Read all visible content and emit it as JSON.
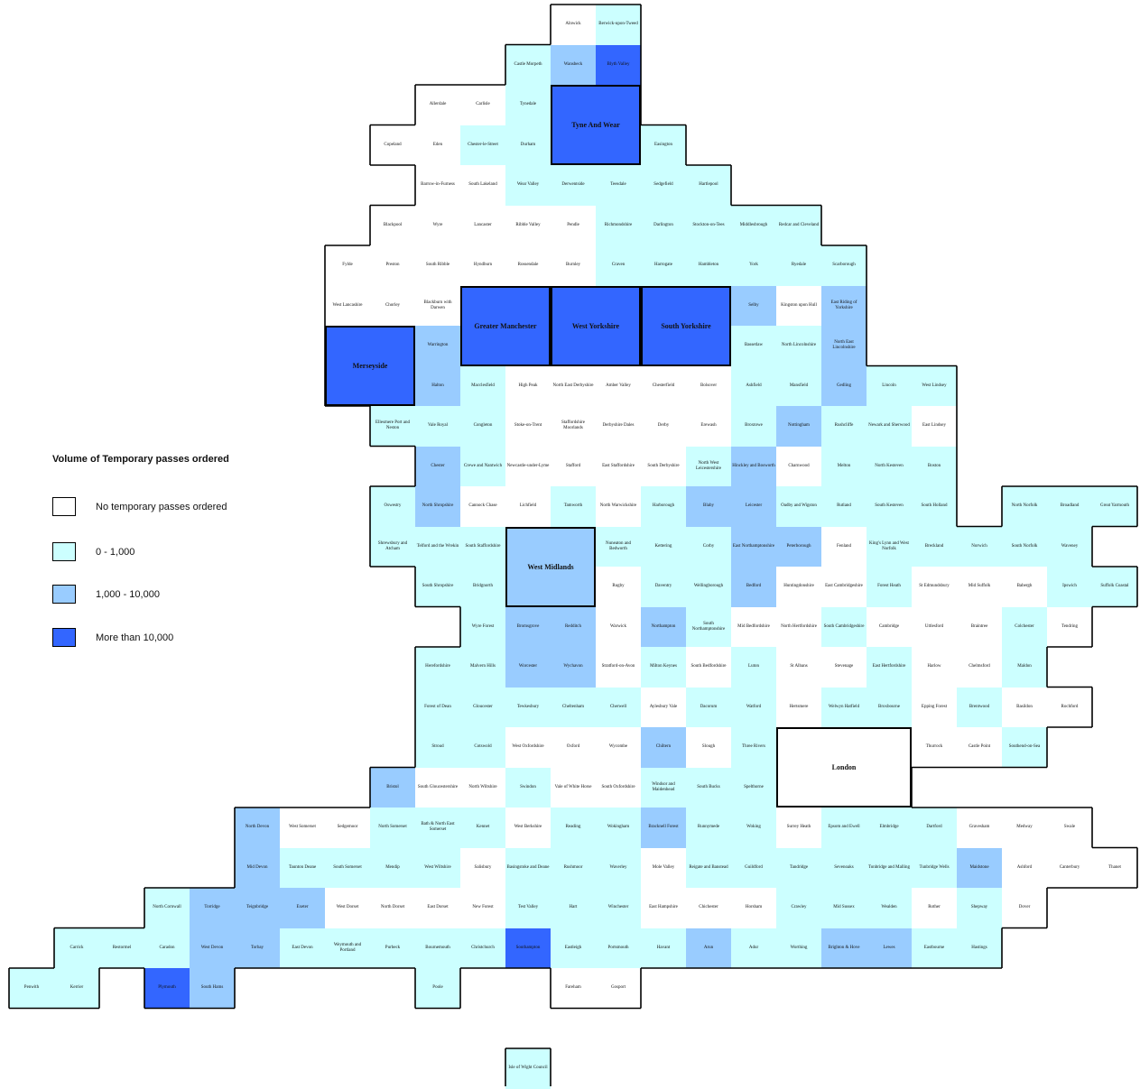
{
  "legend": {
    "title": "Volume of Temporary passes ordered",
    "items": [
      {
        "label": "No temporary passes ordered",
        "color": "#ffffff"
      },
      {
        "label": "0 - 1,000",
        "color": "#ccffff"
      },
      {
        "label": "1,000 - 10,000",
        "color": "#99ccff"
      },
      {
        "label": "More than 10,000",
        "color": "#3366ff"
      }
    ]
  },
  "category_colors": [
    "#ffffff",
    "#ccffff",
    "#99ccff",
    "#3366ff"
  ],
  "map_data": {
    "cells": [
      {
        "name": "Alnwick",
        "c": 0
      },
      {
        "name": "Berwick-upon-Tweed",
        "c": 1
      },
      {
        "name": "Castle Morpeth",
        "c": 1
      },
      {
        "name": "Wansbeck",
        "c": 2
      },
      {
        "name": "Blyth Valley",
        "c": 3
      },
      {
        "name": "Allerdale",
        "c": 0
      },
      {
        "name": "Carlisle",
        "c": 0
      },
      {
        "name": "Tynedale",
        "c": 1
      },
      {
        "name": "Copeland",
        "c": 0
      },
      {
        "name": "Eden",
        "c": 0
      },
      {
        "name": "Chester-le-Street",
        "c": 1
      },
      {
        "name": "Durham",
        "c": 1
      },
      {
        "name": "Easington",
        "c": 1
      },
      {
        "name": "Barrow-in-Furness",
        "c": 0
      },
      {
        "name": "South Lakeland",
        "c": 0
      },
      {
        "name": "Wear Valley",
        "c": 1
      },
      {
        "name": "Derwentside",
        "c": 1
      },
      {
        "name": "Teesdale",
        "c": 1
      },
      {
        "name": "Sedgefield",
        "c": 1
      },
      {
        "name": "Hartlepool",
        "c": 1
      },
      {
        "name": "Blackpool",
        "c": 0
      },
      {
        "name": "Wyre",
        "c": 0
      },
      {
        "name": "Lancaster",
        "c": 0
      },
      {
        "name": "Ribble Valley",
        "c": 0
      },
      {
        "name": "Pendle",
        "c": 0
      },
      {
        "name": "Richmondshire",
        "c": 1
      },
      {
        "name": "Darlington",
        "c": 1
      },
      {
        "name": "Stockton-on-Tees",
        "c": 1
      },
      {
        "name": "Middlesbrough",
        "c": 1
      },
      {
        "name": "Redcar and Cleveland",
        "c": 1
      },
      {
        "name": "Fylde",
        "c": 0
      },
      {
        "name": "Preston",
        "c": 0
      },
      {
        "name": "South Ribble",
        "c": 0
      },
      {
        "name": "Hyndburn",
        "c": 0
      },
      {
        "name": "Rossendale",
        "c": 0
      },
      {
        "name": "Burnley",
        "c": 0
      },
      {
        "name": "Craven",
        "c": 1
      },
      {
        "name": "Harrogate",
        "c": 1
      },
      {
        "name": "Hambleton",
        "c": 1
      },
      {
        "name": "York",
        "c": 1
      },
      {
        "name": "Ryedale",
        "c": 1
      },
      {
        "name": "Scarborough",
        "c": 1
      },
      {
        "name": "West Lancashire",
        "c": 0
      },
      {
        "name": "Chorley",
        "c": 0
      },
      {
        "name": "Blackburn with Darwen",
        "c": 0
      },
      {
        "name": "Selby",
        "c": 2
      },
      {
        "name": "Kingston upon Hull",
        "c": 0
      },
      {
        "name": "East Riding of Yorkshire",
        "c": 2
      },
      {
        "name": "Warrington",
        "c": 2
      },
      {
        "name": "Bassetlaw",
        "c": 1
      },
      {
        "name": "North Lincolnshire",
        "c": 1
      },
      {
        "name": "North East Lincolnshire",
        "c": 2
      },
      {
        "name": "Halton",
        "c": 2
      },
      {
        "name": "Macclesfield",
        "c": 1
      },
      {
        "name": "High Peak",
        "c": 0
      },
      {
        "name": "North East Derbyshire",
        "c": 0
      },
      {
        "name": "Amber Valley",
        "c": 0
      },
      {
        "name": "Chesterfield",
        "c": 0
      },
      {
        "name": "Bolsover",
        "c": 0
      },
      {
        "name": "Ashfield",
        "c": 1
      },
      {
        "name": "Mansfield",
        "c": 1
      },
      {
        "name": "Gedling",
        "c": 2
      },
      {
        "name": "Lincoln",
        "c": 1
      },
      {
        "name": "West Lindsey",
        "c": 1
      },
      {
        "name": "Ellesmere Port and Neston",
        "c": 1
      },
      {
        "name": "Vale Royal",
        "c": 1
      },
      {
        "name": "Congleton",
        "c": 1
      },
      {
        "name": "Stoke-on-Trent",
        "c": 0
      },
      {
        "name": "Staffordshire Moorlands",
        "c": 0
      },
      {
        "name": "Derbyshire Dales",
        "c": 0
      },
      {
        "name": "Derby",
        "c": 0
      },
      {
        "name": "Erewash",
        "c": 0
      },
      {
        "name": "Broxtowe",
        "c": 1
      },
      {
        "name": "Nottingham",
        "c": 2
      },
      {
        "name": "Rushcliffe",
        "c": 1
      },
      {
        "name": "Newark and Sherwood",
        "c": 1
      },
      {
        "name": "East Lindsey",
        "c": 0
      },
      {
        "name": "Chester",
        "c": 2
      },
      {
        "name": "Crewe and Nantwich",
        "c": 1
      },
      {
        "name": "Newcastle-under-Lyme",
        "c": 0
      },
      {
        "name": "Stafford",
        "c": 0
      },
      {
        "name": "East Staffordshire",
        "c": 0
      },
      {
        "name": "South Derbyshire",
        "c": 0
      },
      {
        "name": "North West Leicestershire",
        "c": 1
      },
      {
        "name": "Hinckley and Bosworth",
        "c": 2
      },
      {
        "name": "Charnwood",
        "c": 0
      },
      {
        "name": "Melton",
        "c": 1
      },
      {
        "name": "North Kesteven",
        "c": 1
      },
      {
        "name": "Boston",
        "c": 1
      },
      {
        "name": "Oswestry",
        "c": 1
      },
      {
        "name": "North Shropshire",
        "c": 2
      },
      {
        "name": "Cannock Chase",
        "c": 0
      },
      {
        "name": "Lichfield",
        "c": 0
      },
      {
        "name": "Tamworth",
        "c": 1
      },
      {
        "name": "North Warwickshire",
        "c": 0
      },
      {
        "name": "Harborough",
        "c": 1
      },
      {
        "name": "Blaby",
        "c": 2
      },
      {
        "name": "Leicester",
        "c": 2
      },
      {
        "name": "Oadby and Wigston",
        "c": 1
      },
      {
        "name": "Rutland",
        "c": 1
      },
      {
        "name": "South Kesteven",
        "c": 1
      },
      {
        "name": "South Holland",
        "c": 1
      },
      {
        "name": "North Norfolk",
        "c": 1
      },
      {
        "name": "Broadland",
        "c": 1
      },
      {
        "name": "Great Yarmouth",
        "c": 1
      },
      {
        "name": "Shrewsbury and Atcham",
        "c": 1
      },
      {
        "name": "Telford and the Wrekin",
        "c": 1
      },
      {
        "name": "South Staffordshire",
        "c": 1
      },
      {
        "name": "Nuneaton and Bedworth",
        "c": 1
      },
      {
        "name": "Kettering",
        "c": 1
      },
      {
        "name": "Corby",
        "c": 1
      },
      {
        "name": "East Northamptonshire",
        "c": 2
      },
      {
        "name": "Peterborough",
        "c": 2
      },
      {
        "name": "Fenland",
        "c": 0
      },
      {
        "name": "King's Lynn and West Norfolk",
        "c": 1
      },
      {
        "name": "Breckland",
        "c": 1
      },
      {
        "name": "Norwich",
        "c": 1
      },
      {
        "name": "South Norfolk",
        "c": 1
      },
      {
        "name": "Waveney",
        "c": 1
      },
      {
        "name": "South Shropshire",
        "c": 1
      },
      {
        "name": "Bridgnorth",
        "c": 1
      },
      {
        "name": "Rugby",
        "c": 0
      },
      {
        "name": "Daventry",
        "c": 1
      },
      {
        "name": "Wellingborough",
        "c": 1
      },
      {
        "name": "Bedford",
        "c": 2
      },
      {
        "name": "Huntingdonshire",
        "c": 0
      },
      {
        "name": "East Cambridgeshire",
        "c": 0
      },
      {
        "name": "Forest Heath",
        "c": 1
      },
      {
        "name": "St Edmundsbury",
        "c": 0
      },
      {
        "name": "Mid Suffolk",
        "c": 0
      },
      {
        "name": "Babergh",
        "c": 0
      },
      {
        "name": "Ipswich",
        "c": 1
      },
      {
        "name": "Suffolk Coastal",
        "c": 1
      },
      {
        "name": "Wyre Forest",
        "c": 1
      },
      {
        "name": "Bromsgrove",
        "c": 2
      },
      {
        "name": "Redditch",
        "c": 2
      },
      {
        "name": "Warwick",
        "c": 0
      },
      {
        "name": "Northampton",
        "c": 2
      },
      {
        "name": "South Northamptonshire",
        "c": 1
      },
      {
        "name": "Mid Bedfordshire",
        "c": 0
      },
      {
        "name": "North Hertfordshire",
        "c": 0
      },
      {
        "name": "South Cambridgeshire",
        "c": 1
      },
      {
        "name": "Cambridge",
        "c": 0
      },
      {
        "name": "Uttlesford",
        "c": 0
      },
      {
        "name": "Braintree",
        "c": 0
      },
      {
        "name": "Colchester",
        "c": 1
      },
      {
        "name": "Tendring",
        "c": 0
      },
      {
        "name": "Herefordshire",
        "c": 1
      },
      {
        "name": "Malvern Hills",
        "c": 1
      },
      {
        "name": "Worcester",
        "c": 2
      },
      {
        "name": "Wychavon",
        "c": 2
      },
      {
        "name": "Stratford-on-Avon",
        "c": 0
      },
      {
        "name": "Milton Keynes",
        "c": 1
      },
      {
        "name": "South Bedfordshire",
        "c": 0
      },
      {
        "name": "Luton",
        "c": 1
      },
      {
        "name": "St Albans",
        "c": 0
      },
      {
        "name": "Stevenage",
        "c": 0
      },
      {
        "name": "East Hertfordshire",
        "c": 1
      },
      {
        "name": "Harlow",
        "c": 0
      },
      {
        "name": "Chelmsford",
        "c": 0
      },
      {
        "name": "Maldon",
        "c": 1
      },
      {
        "name": "Forest of Dean",
        "c": 1
      },
      {
        "name": "Gloucester",
        "c": 1
      },
      {
        "name": "Tewkesbury",
        "c": 1
      },
      {
        "name": "Cheltenham",
        "c": 1
      },
      {
        "name": "Cherwell",
        "c": 1
      },
      {
        "name": "Aylesbury Vale",
        "c": 0
      },
      {
        "name": "Dacorum",
        "c": 1
      },
      {
        "name": "Watford",
        "c": 1
      },
      {
        "name": "Hertsmere",
        "c": 0
      },
      {
        "name": "Welwyn Hatfield",
        "c": 1
      },
      {
        "name": "Broxbourne",
        "c": 1
      },
      {
        "name": "Epping Forest",
        "c": 0
      },
      {
        "name": "Brentwood",
        "c": 1
      },
      {
        "name": "Basildon",
        "c": 0
      },
      {
        "name": "Rochford",
        "c": 0
      },
      {
        "name": "Stroud",
        "c": 1
      },
      {
        "name": "Cotswold",
        "c": 1
      },
      {
        "name": "West Oxfordshire",
        "c": 0
      },
      {
        "name": "Oxford",
        "c": 0
      },
      {
        "name": "Wycombe",
        "c": 0
      },
      {
        "name": "Chiltern",
        "c": 2
      },
      {
        "name": "Slough",
        "c": 0
      },
      {
        "name": "Three Rivers",
        "c": 1
      },
      {
        "name": "Thurrock",
        "c": 0
      },
      {
        "name": "Castle Point",
        "c": 0
      },
      {
        "name": "Southend-on-Sea",
        "c": 1
      },
      {
        "name": "Bristol",
        "c": 2
      },
      {
        "name": "South Gloucestershire",
        "c": 0
      },
      {
        "name": "North Wiltshire",
        "c": 0
      },
      {
        "name": "Swindon",
        "c": 1
      },
      {
        "name": "Vale of White Horse",
        "c": 0
      },
      {
        "name": "South Oxfordshire",
        "c": 0
      },
      {
        "name": "Windsor and Maidenhead",
        "c": 1
      },
      {
        "name": "South Bucks",
        "c": 1
      },
      {
        "name": "Spelthorne",
        "c": 1
      },
      {
        "name": "North Devon",
        "c": 2
      },
      {
        "name": "West Somerset",
        "c": 0
      },
      {
        "name": "Sedgemoor",
        "c": 0
      },
      {
        "name": "North Somerset",
        "c": 1
      },
      {
        "name": "Bath & North East Somerset",
        "c": 1
      },
      {
        "name": "Kennet",
        "c": 1
      },
      {
        "name": "West Berkshire",
        "c": 0
      },
      {
        "name": "Reading",
        "c": 1
      },
      {
        "name": "Wokingham",
        "c": 1
      },
      {
        "name": "Bracknell Forest",
        "c": 2
      },
      {
        "name": "Runnymede",
        "c": 1
      },
      {
        "name": "Woking",
        "c": 1
      },
      {
        "name": "Surrey Heath",
        "c": 0
      },
      {
        "name": "Epsom and Ewell",
        "c": 1
      },
      {
        "name": "Elmbridge",
        "c": 1
      },
      {
        "name": "Dartford",
        "c": 1
      },
      {
        "name": "Gravesham",
        "c": 0
      },
      {
        "name": "Medway",
        "c": 0
      },
      {
        "name": "Swale",
        "c": 0
      },
      {
        "name": "Mid Devon",
        "c": 2
      },
      {
        "name": "Taunton Deane",
        "c": 1
      },
      {
        "name": "South Somerset",
        "c": 1
      },
      {
        "name": "Mendip",
        "c": 1
      },
      {
        "name": "West Wiltshire",
        "c": 1
      },
      {
        "name": "Salisbury",
        "c": 0
      },
      {
        "name": "Basingstoke and Deane",
        "c": 1
      },
      {
        "name": "Rushmoor",
        "c": 1
      },
      {
        "name": "Waverley",
        "c": 1
      },
      {
        "name": "Mole Valley",
        "c": 0
      },
      {
        "name": "Reigate and Banstead",
        "c": 1
      },
      {
        "name": "Guildford",
        "c": 1
      },
      {
        "name": "Tandridge",
        "c": 1
      },
      {
        "name": "Sevenoaks",
        "c": 1
      },
      {
        "name": "Tonbridge and Malling",
        "c": 1
      },
      {
        "name": "Tunbridge Wells",
        "c": 1
      },
      {
        "name": "Maidstone",
        "c": 2
      },
      {
        "name": "Ashford",
        "c": 0
      },
      {
        "name": "Canterbury",
        "c": 0
      },
      {
        "name": "Thanet",
        "c": 0
      },
      {
        "name": "North Cornwall",
        "c": 1
      },
      {
        "name": "Torridge",
        "c": 2
      },
      {
        "name": "Teignbridge",
        "c": 2
      },
      {
        "name": "Exeter",
        "c": 2
      },
      {
        "name": "West Dorset",
        "c": 0
      },
      {
        "name": "North Dorset",
        "c": 0
      },
      {
        "name": "East Dorset",
        "c": 0
      },
      {
        "name": "New Forest",
        "c": 0
      },
      {
        "name": "Test Valley",
        "c": 1
      },
      {
        "name": "Hart",
        "c": 1
      },
      {
        "name": "Winchester",
        "c": 1
      },
      {
        "name": "East Hampshire",
        "c": 0
      },
      {
        "name": "Chichester",
        "c": 0
      },
      {
        "name": "Horsham",
        "c": 0
      },
      {
        "name": "Crawley",
        "c": 1
      },
      {
        "name": "Mid Sussex",
        "c": 1
      },
      {
        "name": "Wealden",
        "c": 1
      },
      {
        "name": "Rother",
        "c": 0
      },
      {
        "name": "Shepway",
        "c": 1
      },
      {
        "name": "Dover",
        "c": 0
      },
      {
        "name": "Carrick",
        "c": 1
      },
      {
        "name": "Restormel",
        "c": 1
      },
      {
        "name": "Caradon",
        "c": 1
      },
      {
        "name": "West Devon",
        "c": 2
      },
      {
        "name": "Torbay",
        "c": 2
      },
      {
        "name": "East Devon",
        "c": 1
      },
      {
        "name": "Weymouth and Portland",
        "c": 1
      },
      {
        "name": "Purbeck",
        "c": 1
      },
      {
        "name": "Bournemouth",
        "c": 1
      },
      {
        "name": "Christchurch",
        "c": 1
      },
      {
        "name": "Southampton",
        "c": 3
      },
      {
        "name": "Eastleigh",
        "c": 1
      },
      {
        "name": "Portsmouth",
        "c": 1
      },
      {
        "name": "Havant",
        "c": 1
      },
      {
        "name": "Arun",
        "c": 2
      },
      {
        "name": "Adur",
        "c": 1
      },
      {
        "name": "Worthing",
        "c": 1
      },
      {
        "name": "Brighton & Hove",
        "c": 2
      },
      {
        "name": "Lewes",
        "c": 2
      },
      {
        "name": "Eastbourne",
        "c": 1
      },
      {
        "name": "Hastings",
        "c": 1
      },
      {
        "name": "Penwith",
        "c": 1
      },
      {
        "name": "Kerrier",
        "c": 1
      },
      {
        "name": "Plymouth",
        "c": 3
      },
      {
        "name": "South Hams",
        "c": 2
      },
      {
        "name": "Poole",
        "c": 1
      },
      {
        "name": "Fareham",
        "c": 0
      },
      {
        "name": "Gosport",
        "c": 0
      },
      {
        "name": "Isle of Wight Council",
        "c": 1
      }
    ],
    "regions": [
      {
        "name": "Tyne And Wear",
        "c": 3
      },
      {
        "name": "Greater Manchester",
        "c": 3
      },
      {
        "name": "West Yorkshire",
        "c": 3
      },
      {
        "name": "South Yorkshire",
        "c": 3
      },
      {
        "name": "Merseyside",
        "c": 3
      },
      {
        "name": "West Midlands",
        "c": 2
      },
      {
        "name": "London",
        "c": 0
      }
    ]
  }
}
